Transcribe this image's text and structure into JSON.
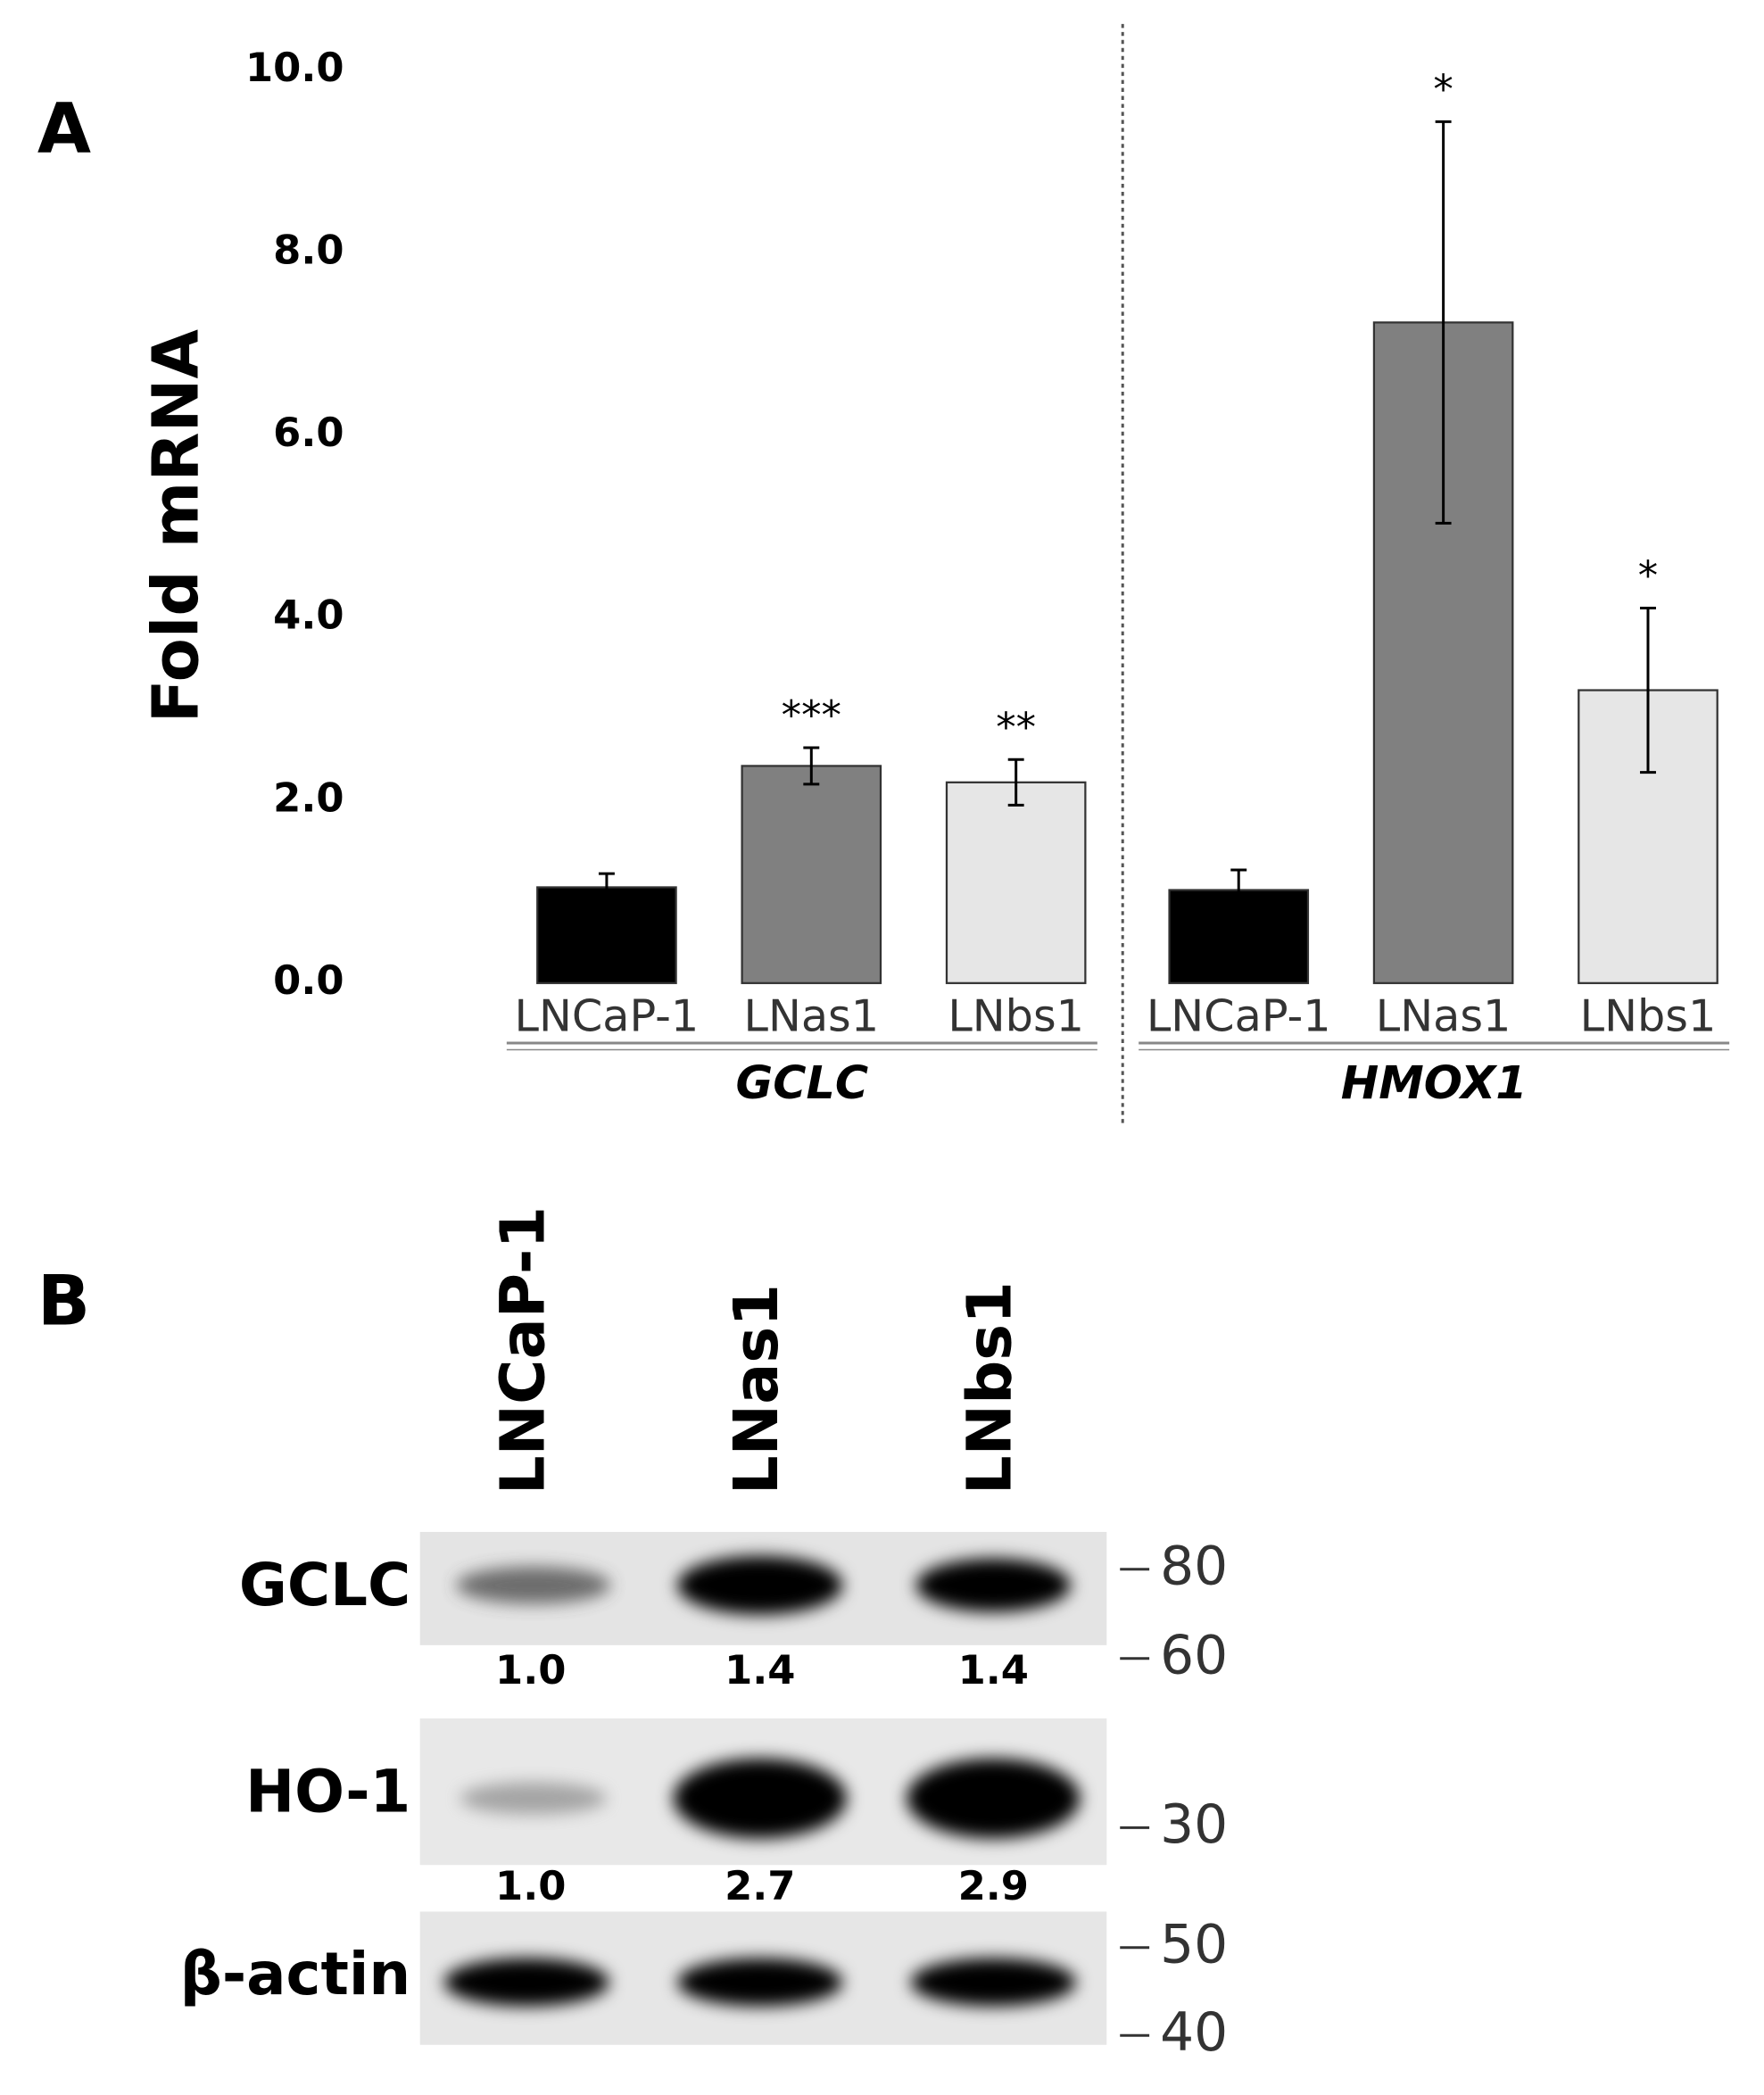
{
  "chart_data": {
    "type": "bar",
    "panel_label": "A",
    "y_label": "Fold mRNA",
    "ylim": [
      0,
      10
    ],
    "yticks": [
      {
        "value": 0,
        "label": "0.0"
      },
      {
        "value": 2,
        "label": "2.0"
      },
      {
        "value": 4,
        "label": "4.0"
      },
      {
        "value": 6,
        "label": "6.0"
      },
      {
        "value": 8,
        "label": "8.0"
      },
      {
        "value": 10,
        "label": "10.0"
      }
    ],
    "colors": [
      "#000000",
      "#808080",
      "#e6e6e6"
    ],
    "groups": [
      {
        "name": "GCLC",
        "categories": [
          "LNCaP-1",
          "LNas1",
          "LNbs1"
        ],
        "values": [
          1.05,
          2.38,
          2.2
        ],
        "errors": [
          0.15,
          0.2,
          0.25
        ],
        "significance": [
          null,
          "***",
          "**"
        ]
      },
      {
        "name": "HMOX1",
        "categories": [
          "LNCaP-1",
          "LNas1",
          "LNbs1"
        ],
        "values": [
          1.02,
          7.24,
          3.21
        ],
        "errors": [
          0.22,
          2.2,
          0.9
        ],
        "significance": [
          null,
          "*",
          "*"
        ]
      }
    ]
  },
  "blot": {
    "panel_label": "B",
    "lanes": [
      "LNCaP-1",
      "LNas1",
      "LNbs1"
    ],
    "rows": [
      {
        "label": "GCLC",
        "quant": [
          "1.0",
          "1.4",
          "1.4"
        ],
        "markers": [
          "80",
          "60"
        ]
      },
      {
        "label": "HO-1",
        "quant": [
          "1.0",
          "2.7",
          "2.9"
        ],
        "markers": [
          "30"
        ]
      },
      {
        "label": "β-actin",
        "markers": [
          "50",
          "40"
        ]
      }
    ]
  }
}
